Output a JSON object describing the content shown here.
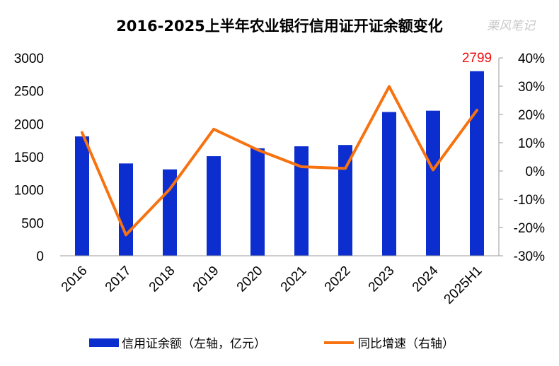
{
  "watermark": "栗风笔记",
  "colors": {
    "bar": "#0d2ecf",
    "line": "#f77210",
    "axis": "#9b9b9b",
    "label": "#ee1010"
  },
  "chart_data": {
    "type": "bar+line",
    "title": "2016-2025上半年农业银行信用证开证余额变化",
    "categories": [
      "2016",
      "2017",
      "2018",
      "2019",
      "2020",
      "2021",
      "2022",
      "2023",
      "2024",
      "2025H1"
    ],
    "series": [
      {
        "name": "信用证余额（左轴，亿元）",
        "type": "bar",
        "axis": "left",
        "values": [
          1810,
          1400,
          1310,
          1510,
          1630,
          1660,
          1680,
          2180,
          2200,
          2799
        ]
      },
      {
        "name": "同比增速（右轴）",
        "type": "line",
        "axis": "right",
        "unit": "%",
        "values": [
          13.6,
          -22.6,
          -6.4,
          14.8,
          7.5,
          1.5,
          0.9,
          29.9,
          0.4,
          21.5
        ]
      }
    ],
    "left_axis": {
      "min": 0,
      "max": 3000,
      "ticks": [
        0,
        500,
        1000,
        1500,
        2000,
        2500,
        3000
      ]
    },
    "right_axis": {
      "min": -30,
      "max": 40,
      "ticks": [
        "-30%",
        "-20%",
        "-10%",
        "0%",
        "10%",
        "20%",
        "30%",
        "40%"
      ]
    },
    "data_labels": [
      {
        "category": "2025H1",
        "text": "2799"
      }
    ],
    "legend": {
      "position": "bottom"
    }
  }
}
